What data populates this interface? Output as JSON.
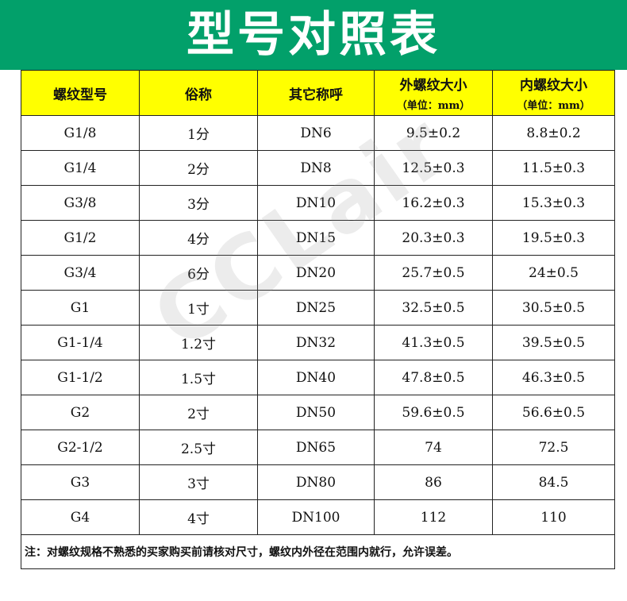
{
  "title": "型号对照表",
  "headers": [
    {
      "main": "螺纹型号",
      "sub": ""
    },
    {
      "main": "俗称",
      "sub": ""
    },
    {
      "main": "其它称呼",
      "sub": ""
    },
    {
      "main": "外螺纹大小",
      "sub": "（单位：mm）"
    },
    {
      "main": "内螺纹大小",
      "sub": "（单位：mm）"
    }
  ],
  "rows": [
    [
      "G1/8",
      "1分",
      "DN6",
      "9.5±0.2",
      "8.8±0.2"
    ],
    [
      "G1/4",
      "2分",
      "DN8",
      "12.5±0.3",
      "11.5±0.3"
    ],
    [
      "G3/8",
      "3分",
      "DN10",
      "16.2±0.3",
      "15.3±0.3"
    ],
    [
      "G1/2",
      "4分",
      "DN15",
      "20.3±0.3",
      "19.5±0.3"
    ],
    [
      "G3/4",
      "6分",
      "DN20",
      "25.7±0.5",
      "24±0.5"
    ],
    [
      "G1",
      "1寸",
      "DN25",
      "32.5±0.5",
      "30.5±0.5"
    ],
    [
      "G1-1/4",
      "1.2寸",
      "DN32",
      "41.3±0.5",
      "39.5±0.5"
    ],
    [
      "G1-1/2",
      "1.5寸",
      "DN40",
      "47.8±0.5",
      "46.3±0.5"
    ],
    [
      "G2",
      "2寸",
      "DN50",
      "59.6±0.5",
      "56.6±0.5"
    ],
    [
      "G2-1/2",
      "2.5寸",
      "DN65",
      "74",
      "72.5"
    ],
    [
      "G3",
      "3寸",
      "DN80",
      "86",
      "84.5"
    ],
    [
      "G4",
      "4寸",
      "DN100",
      "112",
      "110"
    ]
  ],
  "note": "注：对螺纹规格不熟悉的买家购买前请核对尺寸，螺纹内外径在范围内就行，允许误差。",
  "watermark": "CCLair",
  "colors": {
    "banner": "#02a06a",
    "header_bg": "#ffff00"
  }
}
